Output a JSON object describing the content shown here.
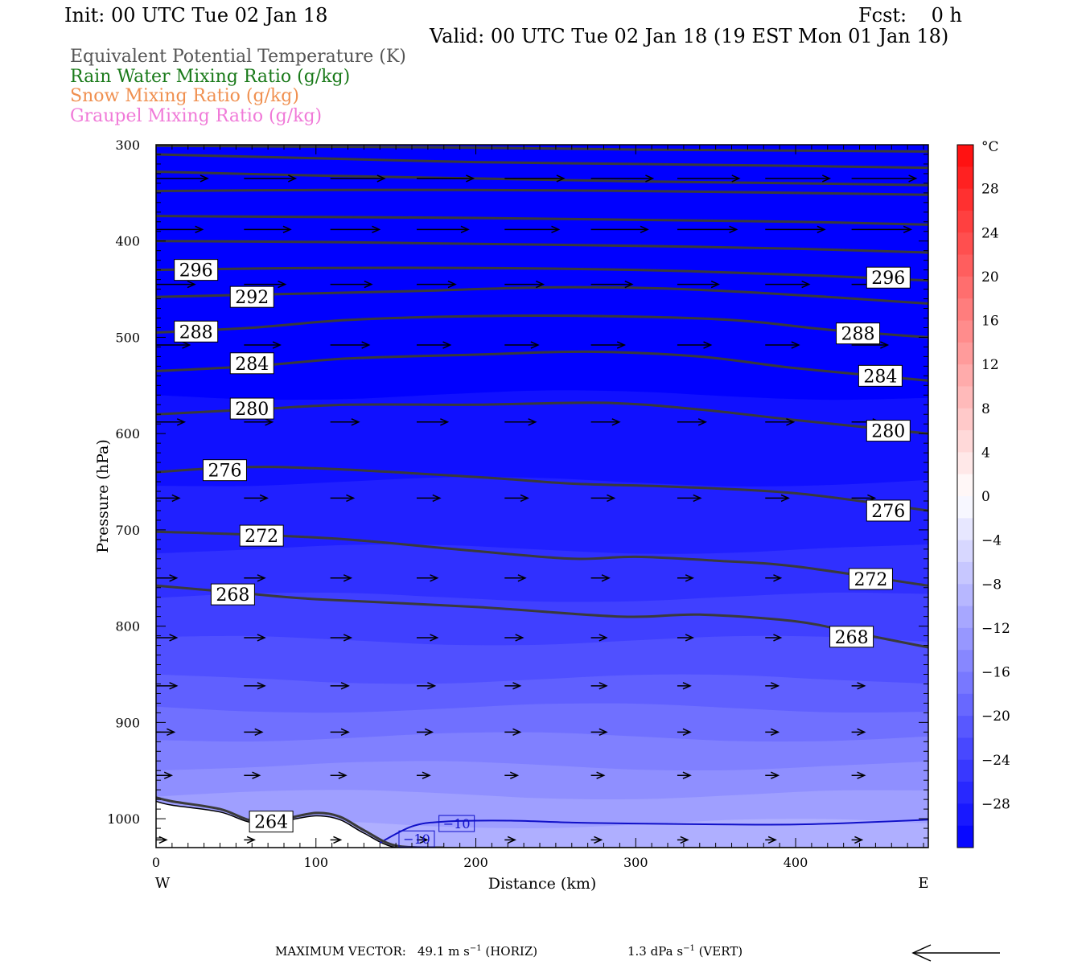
{
  "header": {
    "init": "Init: 00 UTC Tue 02 Jan 18",
    "fcst": "Fcst:    0 h",
    "valid": "Valid: 00 UTC Tue 02 Jan 18 (19 EST Mon 01 Jan 18)",
    "legend": [
      {
        "text": "Equivalent Potential Temperature (K)",
        "color": "#555555"
      },
      {
        "text": "Rain Water Mixing Ratio (g/kg)",
        "color": "#1a7a1a"
      },
      {
        "text": "Snow Mixing Ratio (g/kg)",
        "color": "#f09050"
      },
      {
        "text": "Graupel Mixing Ratio (g/kg)",
        "color": "#f07ad8"
      }
    ]
  },
  "chart_data": {
    "type": "cross-section",
    "xlabel": "Distance (km)",
    "ylabel": "Pressure (hPa)",
    "xlim": [
      0,
      483
    ],
    "ylim": [
      1030,
      300
    ],
    "x_ticks": [
      0,
      100,
      200,
      300,
      400
    ],
    "y_ticks": [
      300,
      400,
      500,
      600,
      700,
      800,
      900,
      1000
    ],
    "x_end_labels": {
      "left": "W",
      "right": "E"
    },
    "temperature_fill": {
      "unit": "°C",
      "colorbar_labels": [
        "28",
        "24",
        "20",
        "16",
        "12",
        "8",
        "4",
        "0",
        "−4",
        "−8",
        "−12",
        "−16",
        "−20",
        "−24",
        "−28"
      ],
      "colorbar_range": [
        -32,
        32
      ],
      "colorbar_step": 2,
      "bands": [
        {
          "p": 1005,
          "temp": -10
        },
        {
          "p": 975,
          "temp": -12
        },
        {
          "p": 945,
          "temp": -14
        },
        {
          "p": 915,
          "temp": -16
        },
        {
          "p": 885,
          "temp": -18
        },
        {
          "p": 855,
          "temp": -20
        },
        {
          "p": 815,
          "temp": -22
        },
        {
          "p": 770,
          "temp": -24
        },
        {
          "p": 720,
          "temp": -26
        },
        {
          "p": 650,
          "temp": -28
        },
        {
          "p": 560,
          "temp": -30
        }
      ],
      "top_temp": -32
    },
    "minus10_contour": {
      "label": "−10",
      "x": [
        140,
        160,
        180,
        220,
        260,
        300,
        360,
        400,
        440,
        483
      ],
      "p": [
        1025,
        1008,
        1003,
        1002,
        1004,
        1005,
        1006,
        1006,
        1004,
        1001
      ]
    },
    "theta_e_contours": [
      {
        "value": 264,
        "label": "264",
        "x": [
          0,
          10,
          40,
          60,
          80,
          100,
          115,
          130,
          150,
          180
        ],
        "p": [
          978,
          982,
          990,
          1002,
          1000,
          994,
          998,
          1012,
          1028,
          1030
        ]
      },
      {
        "value": 268,
        "label": "268",
        "x": [
          0,
          50,
          100,
          200,
          290,
          340,
          400,
          440,
          483
        ],
        "p": [
          758,
          765,
          772,
          780,
          790,
          788,
          795,
          808,
          822
        ]
      },
      {
        "value": 272,
        "label": "272",
        "x": [
          0,
          60,
          120,
          200,
          260,
          300,
          350,
          400,
          483
        ],
        "p": [
          702,
          705,
          710,
          722,
          730,
          728,
          732,
          738,
          758
        ]
      },
      {
        "value": 276,
        "label": "276",
        "x": [
          0,
          50,
          100,
          200,
          260,
          320,
          400,
          483
        ],
        "p": [
          640,
          635,
          636,
          645,
          652,
          655,
          662,
          680
        ]
      },
      {
        "value": 280,
        "label": "280",
        "x": [
          0,
          60,
          120,
          200,
          280,
          340,
          400,
          483
        ],
        "p": [
          580,
          575,
          570,
          570,
          568,
          575,
          586,
          600
        ]
      },
      {
        "value": 284,
        "label": "284",
        "x": [
          0,
          60,
          120,
          200,
          270,
          340,
          400,
          483
        ],
        "p": [
          535,
          530,
          522,
          518,
          515,
          520,
          532,
          545
        ]
      },
      {
        "value": 288,
        "label": "288",
        "x": [
          0,
          60,
          120,
          200,
          280,
          360,
          420,
          483
        ],
        "p": [
          495,
          490,
          482,
          478,
          478,
          482,
          492,
          500
        ]
      },
      {
        "value": 292,
        "label": "292",
        "x": [
          0,
          80,
          160,
          250,
          330,
          420,
          483
        ],
        "p": [
          458,
          455,
          452,
          448,
          450,
          458,
          465
        ]
      },
      {
        "value": 296,
        "label": "296",
        "x": [
          0,
          100,
          200,
          300,
          400,
          483
        ],
        "p": [
          430,
          428,
          428,
          430,
          435,
          441
        ]
      },
      {
        "value": 300,
        "label": "",
        "x": [
          0,
          100,
          200,
          300,
          400,
          483
        ],
        "p": [
          400,
          401,
          403,
          405,
          408,
          412
        ]
      },
      {
        "value": 304,
        "label": "",
        "x": [
          0,
          100,
          200,
          300,
          400,
          483
        ],
        "p": [
          374,
          375,
          376,
          378,
          380,
          383
        ]
      },
      {
        "value": 308,
        "label": "",
        "x": [
          0,
          100,
          200,
          300,
          400,
          483
        ],
        "p": [
          348,
          347,
          347,
          348,
          350,
          352
        ]
      },
      {
        "value": 312,
        "label": "",
        "x": [
          0,
          100,
          200,
          300,
          400,
          483
        ],
        "p": [
          328,
          332,
          335,
          338,
          340,
          342
        ]
      },
      {
        "value": 316,
        "label": "",
        "x": [
          0,
          100,
          200,
          300,
          400,
          483
        ],
        "p": [
          310,
          314,
          318,
          320,
          322,
          324
        ]
      },
      {
        "value": 320,
        "label": "",
        "x": [
          0,
          100,
          200,
          300,
          400,
          483
        ],
        "p": [
          301,
          302,
          303,
          305,
          306,
          307
        ]
      }
    ],
    "contour_labels": [
      {
        "label": "296",
        "x": 25,
        "p": 430
      },
      {
        "label": "296",
        "x": 458,
        "p": 438
      },
      {
        "label": "292",
        "x": 60,
        "p": 458
      },
      {
        "label": "288",
        "x": 25,
        "p": 494
      },
      {
        "label": "288",
        "x": 439,
        "p": 496
      },
      {
        "label": "284",
        "x": 60,
        "p": 527
      },
      {
        "label": "284",
        "x": 453,
        "p": 540
      },
      {
        "label": "280",
        "x": 60,
        "p": 574
      },
      {
        "label": "280",
        "x": 458,
        "p": 597
      },
      {
        "label": "276",
        "x": 43,
        "p": 638
      },
      {
        "label": "276",
        "x": 458,
        "p": 680
      },
      {
        "label": "272",
        "x": 66,
        "p": 706
      },
      {
        "label": "272",
        "x": 447,
        "p": 751
      },
      {
        "label": "268",
        "x": 48,
        "p": 767
      },
      {
        "label": "268",
        "x": 435,
        "p": 811
      },
      {
        "label": "264",
        "x": 72,
        "p": 1003
      }
    ],
    "wind_vectors": {
      "columns_a": [
        0,
        55,
        109
      ],
      "columns_b": [
        163,
        218,
        272,
        326,
        381,
        435
      ],
      "levels": [
        {
          "p": 335,
          "len_a": [
            40,
            40,
            42
          ],
          "len_b": [
            44,
            46,
            48,
            48,
            50,
            50
          ]
        },
        {
          "p": 388,
          "len_a": [
            36,
            36,
            38
          ],
          "len_b": [
            40,
            42,
            44,
            46,
            46,
            46
          ]
        },
        {
          "p": 445,
          "len_a": [
            30,
            32,
            32
          ],
          "len_b": [
            30,
            30,
            32,
            32,
            34,
            36
          ]
        },
        {
          "p": 508,
          "len_a": [
            26,
            28,
            30
          ],
          "len_b": [
            26,
            26,
            26,
            26,
            26,
            28
          ]
        },
        {
          "p": 588,
          "len_a": [
            22,
            22,
            22
          ],
          "len_b": [
            24,
            24,
            22,
            22,
            22,
            22
          ]
        },
        {
          "p": 667,
          "len_a": [
            18,
            18,
            18
          ],
          "len_b": [
            18,
            18,
            18,
            18,
            18,
            18
          ]
        },
        {
          "p": 750,
          "len_a": [
            16,
            16,
            16
          ],
          "len_b": [
            16,
            16,
            14,
            12,
            12,
            12
          ]
        },
        {
          "p": 812,
          "len_a": [
            16,
            16,
            16
          ],
          "len_b": [
            16,
            14,
            12,
            12,
            12,
            10
          ]
        },
        {
          "p": 862,
          "len_a": [
            16,
            16,
            14
          ],
          "len_b": [
            14,
            12,
            12,
            10,
            10,
            10
          ]
        },
        {
          "p": 910,
          "len_a": [
            14,
            14,
            14
          ],
          "len_b": [
            12,
            12,
            12,
            10,
            10,
            10
          ]
        },
        {
          "p": 955,
          "len_a": [
            12,
            12,
            12
          ],
          "len_b": [
            10,
            10,
            10,
            10,
            10,
            10
          ]
        },
        {
          "p": 1022,
          "len_a": [
            8,
            8,
            8
          ],
          "len_b": [
            8,
            8,
            8,
            8,
            8,
            8
          ]
        }
      ]
    },
    "terrain": {
      "x": [
        0,
        10,
        40,
        60,
        80,
        100,
        115,
        130,
        150,
        180,
        483
      ],
      "p": [
        982,
        986,
        993,
        1004,
        1002,
        997,
        1001,
        1015,
        1030,
        1030,
        1030
      ]
    }
  },
  "footer": {
    "max_vector_label": "MAXIMUM VECTOR:",
    "horiz_value": "49.1 m s",
    "horiz_exp": "−1",
    "horiz_suffix": " (HORIZ)",
    "vert_value": "1.3 dPa s",
    "vert_exp": "−1",
    "vert_suffix": " (VERT)"
  }
}
